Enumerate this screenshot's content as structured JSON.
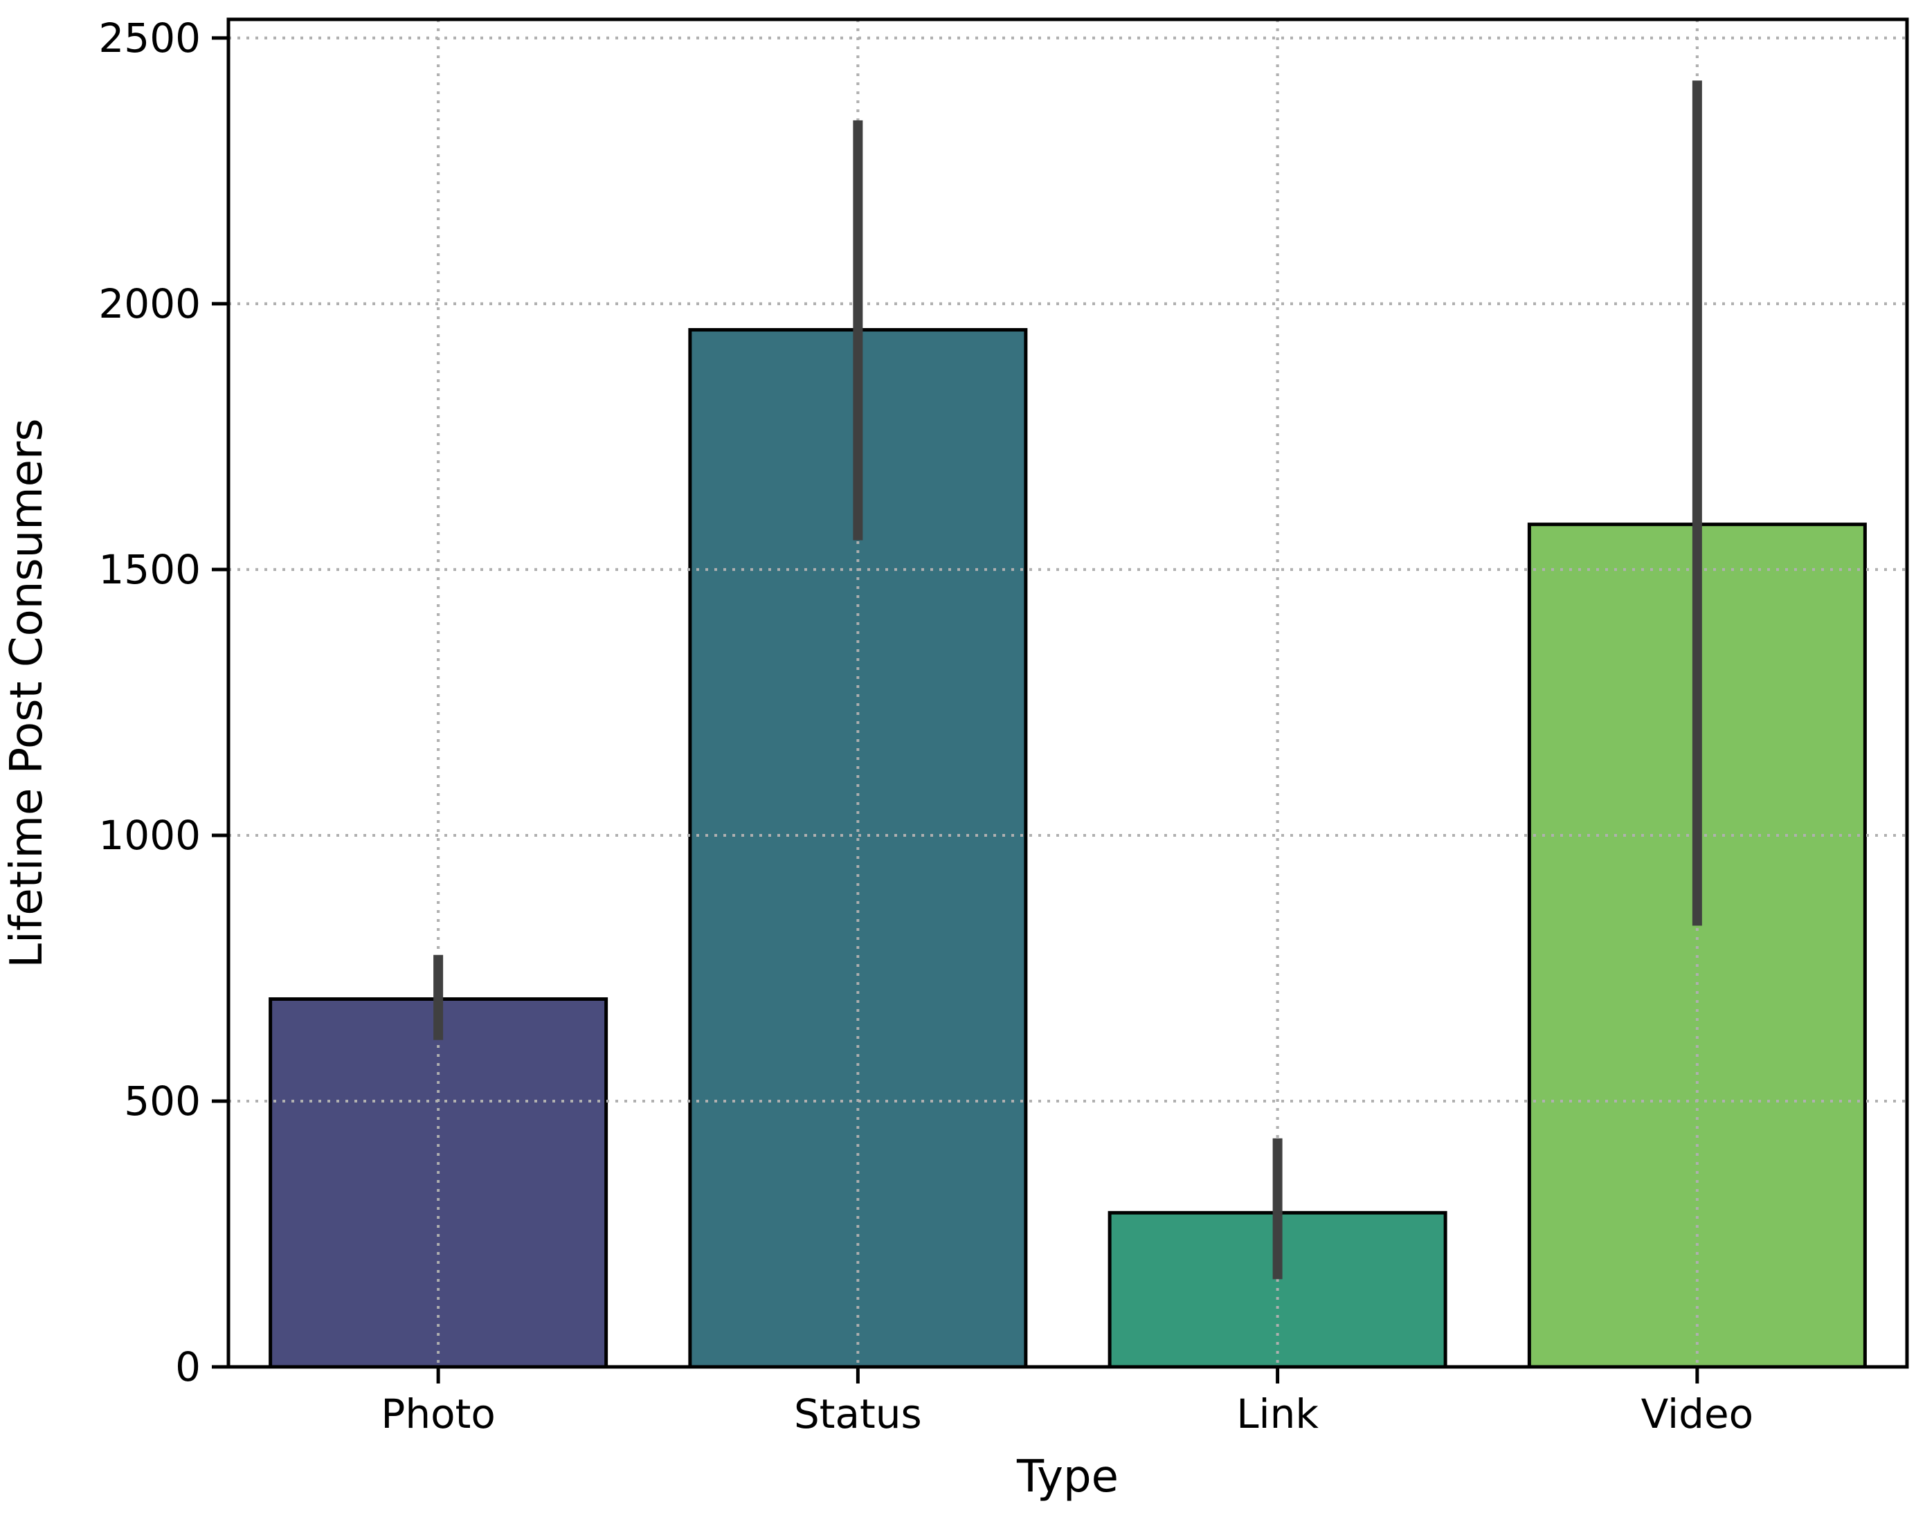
{
  "chart_data": {
    "type": "bar",
    "categories": [
      "Photo",
      "Status",
      "Link",
      "Video"
    ],
    "values": [
      692,
      1951,
      290,
      1585
    ],
    "error_bars": [
      {
        "low": 615,
        "high": 775
      },
      {
        "low": 1555,
        "high": 2345
      },
      {
        "low": 165,
        "high": 430
      },
      {
        "low": 830,
        "high": 2420
      }
    ],
    "colors": [
      "#4a4c7d",
      "#37717e",
      "#35997b",
      "#80c260"
    ],
    "error_bar_color": "#404040",
    "xlabel": "Type",
    "ylabel": "Lifetime Post Consumers",
    "ylim": [
      0,
      2535
    ],
    "yticks": [
      0,
      500,
      1000,
      1500,
      2000,
      2500
    ],
    "grid": true
  }
}
